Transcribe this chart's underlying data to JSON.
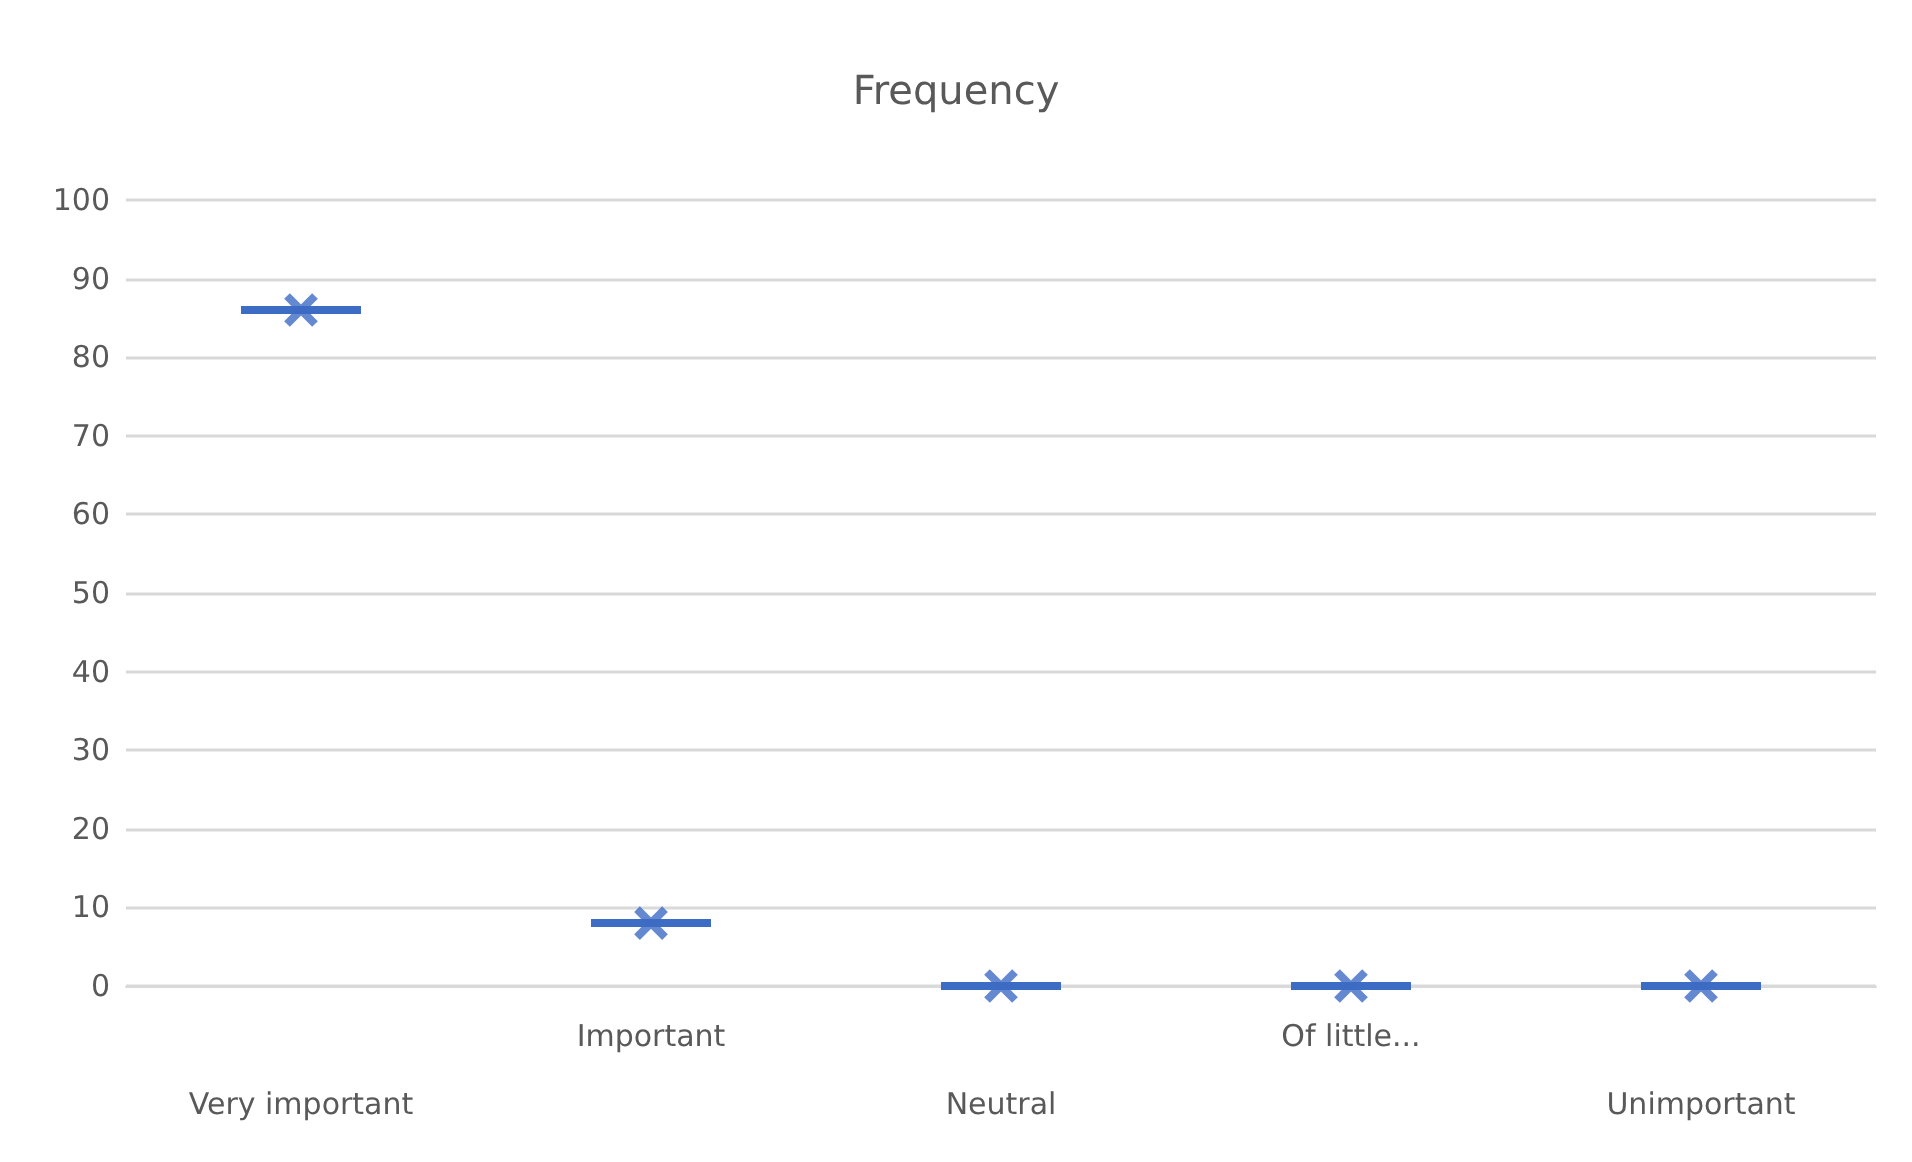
{
  "chart_data": {
    "type": "box",
    "title": "Frequency",
    "categories": [
      "Very important",
      "Important",
      "Neutral",
      "Of little...",
      "Unimportant"
    ],
    "boxes": [
      {
        "low": 86,
        "q1": 86,
        "median": 86,
        "q3": 86,
        "high": 86,
        "mean": 86
      },
      {
        "low": 8,
        "q1": 8,
        "median": 8,
        "q3": 8,
        "high": 8,
        "mean": 8
      },
      {
        "low": 0,
        "q1": 0,
        "median": 0,
        "q3": 0,
        "high": 0,
        "mean": 0
      },
      {
        "low": 0,
        "q1": 0,
        "median": 0,
        "q3": 0,
        "high": 0,
        "mean": 0
      },
      {
        "low": 0,
        "q1": 0,
        "median": 0,
        "q3": 0,
        "high": 0,
        "mean": 0
      }
    ],
    "color": "#3d6cc4",
    "ylim": [
      0,
      100
    ],
    "yticks": [
      0,
      10,
      20,
      30,
      40,
      50,
      60,
      70,
      80,
      90,
      100
    ],
    "grid": "y",
    "marker": "cross"
  }
}
